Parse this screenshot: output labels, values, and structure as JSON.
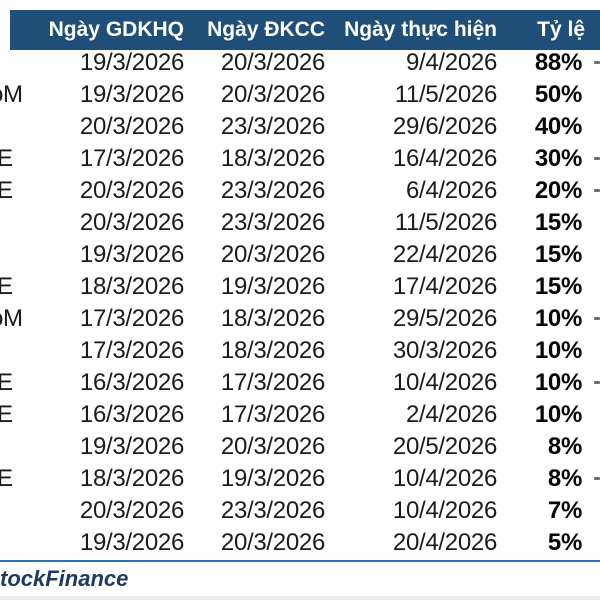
{
  "header": {
    "col_gdkhq": "Ngày GDKHQ",
    "col_dkcc": "Ngày ĐKCC",
    "col_thuc_hien": "Ngày thực hiện",
    "col_ty_le": "Tỷ lệ"
  },
  "rows": [
    {
      "exchange_fragment": "",
      "gdkhq": "19/3/2026",
      "dkcc": "20/3/2026",
      "thuc_hien": "9/4/2026",
      "ty_le": "88%",
      "right_fragment": true
    },
    {
      "exchange_fragment": "oM",
      "gdkhq": "19/3/2026",
      "dkcc": "20/3/2026",
      "thuc_hien": "11/5/2026",
      "ty_le": "50%",
      "right_fragment": false
    },
    {
      "exchange_fragment": "",
      "gdkhq": "20/3/2026",
      "dkcc": "23/3/2026",
      "thuc_hien": "29/6/2026",
      "ty_le": "40%",
      "right_fragment": false
    },
    {
      "exchange_fragment": "E",
      "gdkhq": "17/3/2026",
      "dkcc": "18/3/2026",
      "thuc_hien": "16/4/2026",
      "ty_le": "30%",
      "right_fragment": true
    },
    {
      "exchange_fragment": "E",
      "gdkhq": "20/3/2026",
      "dkcc": "23/3/2026",
      "thuc_hien": "6/4/2026",
      "ty_le": "20%",
      "right_fragment": true
    },
    {
      "exchange_fragment": "",
      "gdkhq": "20/3/2026",
      "dkcc": "23/3/2026",
      "thuc_hien": "11/5/2026",
      "ty_le": "15%",
      "right_fragment": false
    },
    {
      "exchange_fragment": "",
      "gdkhq": "19/3/2026",
      "dkcc": "20/3/2026",
      "thuc_hien": "22/4/2026",
      "ty_le": "15%",
      "right_fragment": false
    },
    {
      "exchange_fragment": "E",
      "gdkhq": "18/3/2026",
      "dkcc": "19/3/2026",
      "thuc_hien": "17/4/2026",
      "ty_le": "15%",
      "right_fragment": false
    },
    {
      "exchange_fragment": "oM",
      "gdkhq": "17/3/2026",
      "dkcc": "18/3/2026",
      "thuc_hien": "29/5/2026",
      "ty_le": "10%",
      "right_fragment": true
    },
    {
      "exchange_fragment": "",
      "gdkhq": "17/3/2026",
      "dkcc": "18/3/2026",
      "thuc_hien": "30/3/2026",
      "ty_le": "10%",
      "right_fragment": false
    },
    {
      "exchange_fragment": "E",
      "gdkhq": "16/3/2026",
      "dkcc": "17/3/2026",
      "thuc_hien": "10/4/2026",
      "ty_le": "10%",
      "right_fragment": true
    },
    {
      "exchange_fragment": "E",
      "gdkhq": "16/3/2026",
      "dkcc": "17/3/2026",
      "thuc_hien": "2/4/2026",
      "ty_le": "10%",
      "right_fragment": false
    },
    {
      "exchange_fragment": "",
      "gdkhq": "19/3/2026",
      "dkcc": "20/3/2026",
      "thuc_hien": "20/5/2026",
      "ty_le": "8%",
      "right_fragment": false
    },
    {
      "exchange_fragment": "E",
      "gdkhq": "18/3/2026",
      "dkcc": "19/3/2026",
      "thuc_hien": "10/4/2026",
      "ty_le": "8%",
      "right_fragment": true
    },
    {
      "exchange_fragment": "",
      "gdkhq": "20/3/2026",
      "dkcc": "23/3/2026",
      "thuc_hien": "10/4/2026",
      "ty_le": "7%",
      "right_fragment": false
    },
    {
      "exchange_fragment": "",
      "gdkhq": "19/3/2026",
      "dkcc": "20/3/2026",
      "thuc_hien": "20/4/2026",
      "ty_le": "5%",
      "right_fragment": false
    }
  ],
  "footer": {
    "brand": "tockFinance"
  },
  "colors": {
    "header_bg": "#1F4E79",
    "header_text": "#FFFFFF",
    "footer_line": "#2E74B5",
    "footer_text": "#1F3864"
  }
}
